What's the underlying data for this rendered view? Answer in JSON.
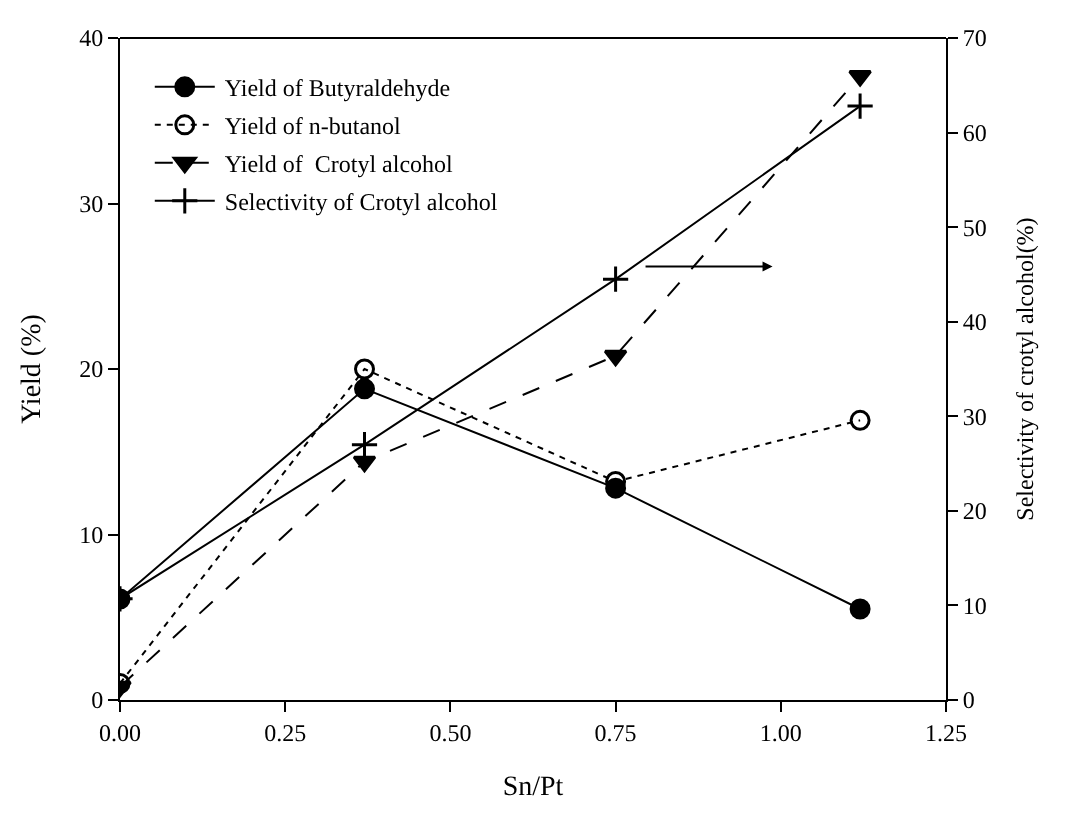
{
  "chart_data": {
    "type": "line",
    "xlabel": "Sn/Pt",
    "ylabel": "Yield (%)",
    "y2label": "Selectivity of crotyl alcohol(%)",
    "x": [
      0,
      0.37,
      0.75,
      1.12
    ],
    "series": [
      {
        "name": "Yield of Butyraldehyde",
        "color": "#000000",
        "values": [
          6.1,
          18.8,
          12.8,
          5.5
        ],
        "marker": "circle",
        "line_style": "solid"
      },
      {
        "name": "Yield of n-butanol",
        "color": "#000000",
        "values": [
          1.0,
          20.0,
          13.2,
          16.9
        ],
        "marker": "circle-open",
        "line_style": "dotted"
      },
      {
        "name": "Yield of  Crotyl alcohol",
        "color": "#000000",
        "values": [
          0.8,
          14.4,
          20.8,
          37.7
        ],
        "marker": "triangle",
        "line_style": "dashed"
      },
      {
        "name": "Selectivity of Crotyl alcohol",
        "color": "#000000",
        "values": [
          10.7,
          27.0,
          44.5,
          62.8
        ],
        "marker": "cross",
        "line_style": "solid",
        "axis": "y2"
      }
    ],
    "xlim": [
      0,
      1.25
    ],
    "xticks": [
      {
        "value": 0,
        "label": "0.00"
      },
      {
        "value": 0.25,
        "label": "0.25"
      },
      {
        "value": 0.5,
        "label": "0.50"
      },
      {
        "value": 0.75,
        "label": "0.75"
      },
      {
        "value": 1,
        "label": "1.00"
      },
      {
        "value": 1.25,
        "label": "1.25"
      }
    ],
    "ylim": [
      0,
      40
    ],
    "yticks": [
      0,
      10,
      20,
      30,
      40
    ],
    "y2lim": [
      0,
      70
    ],
    "y2ticks": [
      0,
      10,
      20,
      30,
      40,
      50,
      60,
      70
    ],
    "legend": "top left"
  }
}
